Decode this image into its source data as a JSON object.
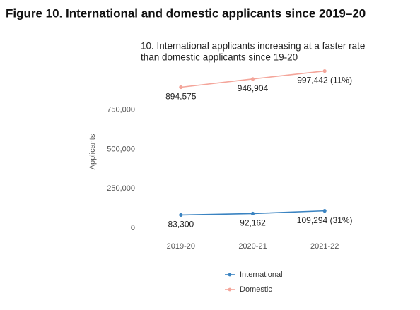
{
  "header": {
    "title": "Figure 10. International and domestic applicants since 2019–20"
  },
  "chart_data": {
    "type": "line",
    "title": [
      "10. International applicants increasing at a faster rate",
      "than domestic applicants since 19-20"
    ],
    "y_label": "Applicants",
    "categories": [
      "2019-20",
      "2020-21",
      "2021-22"
    ],
    "series": [
      {
        "name": "International",
        "color": "#3a83c1",
        "values": [
          83300,
          92162,
          109294
        ],
        "value_labels": [
          "83,300",
          "92,162",
          "109,294 (31%)"
        ]
      },
      {
        "name": "Domestic",
        "color": "#f4a59a",
        "values": [
          894575,
          946904,
          997442
        ],
        "value_labels": [
          "894,575",
          "946,904",
          "997,442 (11%)"
        ]
      }
    ],
    "ylim": [
      0,
      1000000
    ],
    "yticks": [
      0,
      {
        "value": 250000,
        "label": "250,000"
      },
      {
        "value": 500000,
        "label": "500,000"
      },
      {
        "value": 750000,
        "label": "750,000"
      }
    ],
    "grid": false,
    "legend": "bottom"
  }
}
